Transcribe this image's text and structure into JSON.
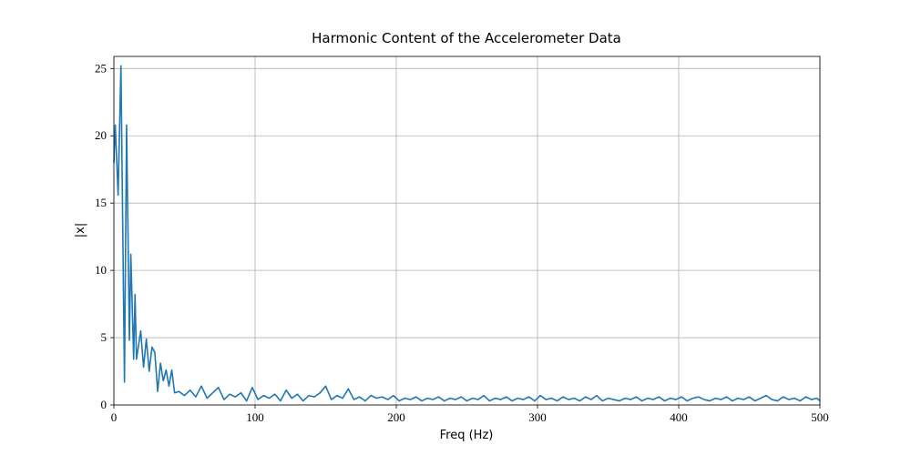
{
  "chart_data": {
    "type": "line",
    "title": "Harmonic Content of the Accelerometer Data",
    "x_label": "Freq (Hz)",
    "y_label": "|x|",
    "xlim": [
      0,
      500
    ],
    "xticks": [
      0,
      100,
      200,
      300,
      400,
      500
    ],
    "ylim": [
      0,
      25.9
    ],
    "yticks": [
      0,
      5,
      10,
      15,
      20,
      25
    ],
    "grid": true,
    "series": [
      {
        "color": "#1f77b4",
        "x": [
          0,
          1,
          3,
          5,
          7.5,
          9,
          11,
          12,
          14,
          15,
          16,
          19,
          21,
          23,
          25,
          27,
          29,
          31,
          33,
          35,
          37,
          39,
          41,
          43,
          46,
          50,
          54,
          58,
          62,
          66,
          70,
          74,
          78,
          82,
          86,
          90,
          94,
          98,
          102,
          106,
          110,
          114,
          118,
          122,
          126,
          130,
          134,
          138,
          142,
          146,
          150,
          154,
          158,
          162,
          166,
          170,
          174,
          178,
          182,
          186,
          190,
          194,
          198,
          202,
          206,
          210,
          214,
          218,
          222,
          226,
          230,
          234,
          238,
          242,
          246,
          250,
          254,
          258,
          262,
          266,
          270,
          274,
          278,
          282,
          286,
          290,
          294,
          298,
          302,
          306,
          310,
          314,
          318,
          322,
          326,
          330,
          334,
          338,
          342,
          346,
          350,
          354,
          358,
          362,
          366,
          370,
          374,
          378,
          382,
          386,
          390,
          394,
          398,
          402,
          406,
          410,
          414,
          418,
          422,
          426,
          430,
          434,
          438,
          442,
          446,
          450,
          454,
          458,
          462,
          466,
          470,
          474,
          478,
          482,
          486,
          490,
          494,
          498,
          500
        ],
        "values": [
          18,
          20.8,
          15.6,
          25.2,
          1.7,
          20.8,
          4.8,
          11.2,
          3.4,
          8.2,
          3.4,
          5.5,
          2.8,
          4.9,
          2.5,
          4.3,
          3.9,
          1.0,
          3.1,
          1.8,
          2.6,
          1.4,
          2.6,
          0.9,
          1.0,
          0.7,
          1.1,
          0.6,
          1.4,
          0.5,
          0.9,
          1.3,
          0.4,
          0.8,
          0.6,
          0.9,
          0.3,
          1.3,
          0.4,
          0.7,
          0.5,
          0.8,
          0.3,
          1.1,
          0.5,
          0.8,
          0.3,
          0.7,
          0.6,
          0.9,
          1.4,
          0.4,
          0.7,
          0.5,
          1.2,
          0.4,
          0.6,
          0.3,
          0.7,
          0.5,
          0.6,
          0.4,
          0.7,
          0.3,
          0.5,
          0.4,
          0.6,
          0.3,
          0.5,
          0.4,
          0.6,
          0.3,
          0.5,
          0.4,
          0.6,
          0.3,
          0.5,
          0.4,
          0.7,
          0.3,
          0.5,
          0.4,
          0.6,
          0.3,
          0.5,
          0.4,
          0.6,
          0.3,
          0.7,
          0.4,
          0.5,
          0.3,
          0.6,
          0.4,
          0.5,
          0.3,
          0.6,
          0.4,
          0.7,
          0.3,
          0.5,
          0.4,
          0.3,
          0.5,
          0.4,
          0.6,
          0.3,
          0.5,
          0.4,
          0.6,
          0.3,
          0.5,
          0.4,
          0.6,
          0.3,
          0.5,
          0.6,
          0.4,
          0.3,
          0.5,
          0.4,
          0.6,
          0.3,
          0.5,
          0.4,
          0.6,
          0.3,
          0.5,
          0.7,
          0.4,
          0.3,
          0.6,
          0.4,
          0.5,
          0.3,
          0.6,
          0.4,
          0.5,
          0.3
        ]
      }
    ]
  }
}
